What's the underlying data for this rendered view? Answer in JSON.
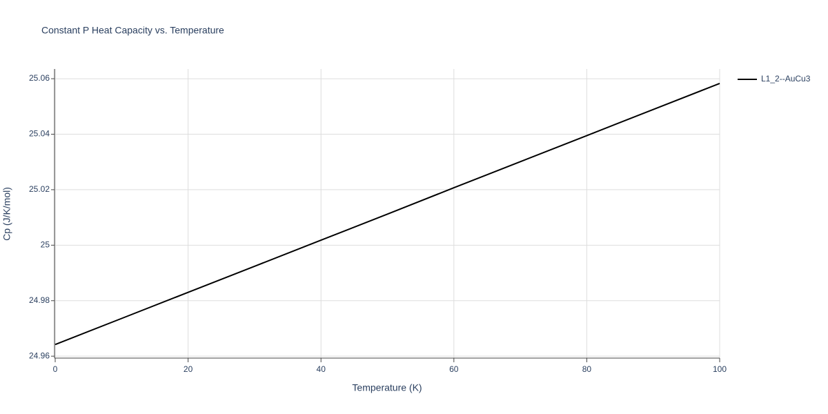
{
  "chart_data": {
    "type": "line",
    "title": "Constant P Heat Capacity vs. Temperature",
    "x_label": "Temperature (K)",
    "y_label": "Cp (J/K/mol)",
    "x": [
      0,
      10,
      20,
      30,
      40,
      50,
      60,
      70,
      80,
      90,
      100
    ],
    "series": [
      {
        "name": "L1_2--AuCu3",
        "color": "#000000",
        "values": [
          24.9642,
          24.9736,
          24.983,
          24.9924,
          25.0018,
          25.0112,
          25.0207,
          25.0301,
          25.0395,
          25.0489,
          25.0583
        ]
      }
    ],
    "xlim": [
      0,
      100
    ],
    "xticks": [
      0,
      20,
      40,
      60,
      80,
      100
    ],
    "ylim": [
      24.9593,
      25.0635
    ],
    "yticks": [
      24.96,
      24.98,
      25,
      25.02,
      25.04,
      25.06
    ],
    "grid": true,
    "legend": "right"
  }
}
